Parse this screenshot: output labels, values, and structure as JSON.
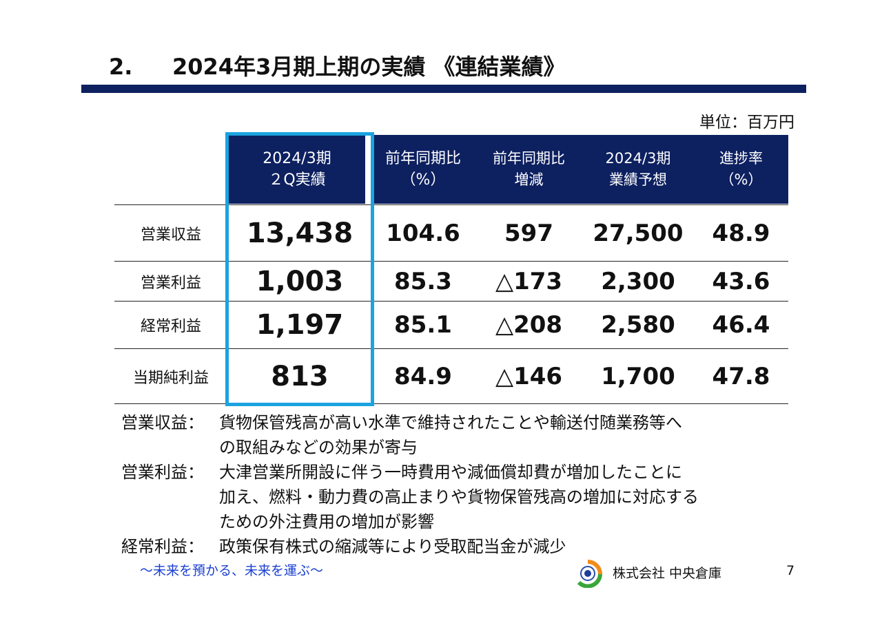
{
  "title": {
    "number": "2.",
    "text": "2024年3月期上期の実績 《連結業績》"
  },
  "unit": "単位：百万円",
  "table": {
    "headers": [
      {
        "line1": "2024/3期",
        "line2": "２Q実績"
      },
      {
        "line1": "前年同期比",
        "line2": "（%）"
      },
      {
        "line1": "前年同期比",
        "line2": "増減"
      },
      {
        "line1": "2024/3期",
        "line2": "業績予想"
      },
      {
        "line1": "進捗率",
        "line2": "（%）"
      }
    ],
    "rows": [
      {
        "label": "営業収益",
        "actual": "13,438",
        "yoy_pct": "104.6",
        "yoy_diff": "597",
        "forecast": "27,500",
        "progress": "48.9"
      },
      {
        "label": "営業利益",
        "actual": "1,003",
        "yoy_pct": "85.3",
        "yoy_diff": "△173",
        "forecast": "2,300",
        "progress": "43.6"
      },
      {
        "label": "経常利益",
        "actual": "1,197",
        "yoy_pct": "85.1",
        "yoy_diff": "△208",
        "forecast": "2,580",
        "progress": "46.4"
      },
      {
        "label": "当期純利益",
        "actual": "813",
        "yoy_pct": "84.9",
        "yoy_diff": "△146",
        "forecast": "1,700",
        "progress": "47.8"
      }
    ]
  },
  "notes": [
    {
      "label": "営業収益：",
      "lines": [
        "貨物保管残高が高い水準で維持されたことや輸送付随業務等へ",
        "の取組みなどの効果が寄与"
      ]
    },
    {
      "label": "営業利益：",
      "lines": [
        "大津営業所開設に伴う一時費用や減価償却費が増加したことに",
        "加え、燃料・動力費の高止まりや貨物保管残高の増加に対応する",
        "ための外注費用の増加が影響"
      ]
    },
    {
      "label": "経常利益：",
      "lines": [
        "政策保有株式の縮減等により受取配当金が減少"
      ]
    }
  ],
  "footer": {
    "slogan": "～未来を預かる、未来を運ぶ～",
    "company": "株式会社  中央倉庫",
    "page": "7",
    "logo_icon": "company-logo-icon"
  },
  "colors": {
    "header_bg": "#0d2060",
    "highlight": "#1ba3e0",
    "slogan": "#1a3fd1"
  }
}
